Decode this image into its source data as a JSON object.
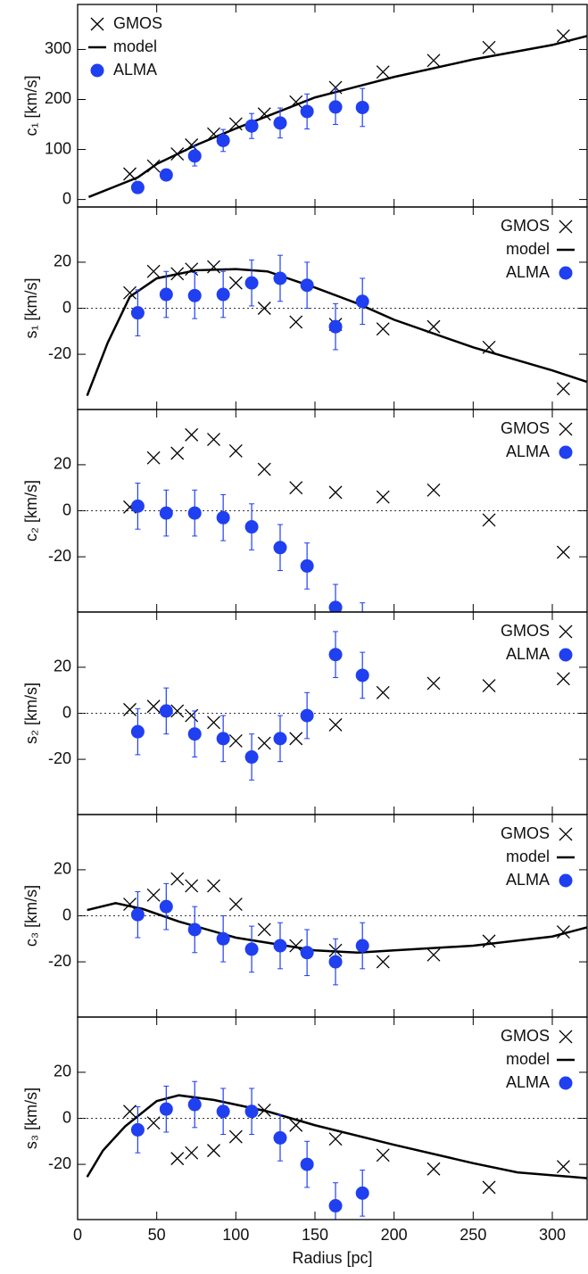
{
  "chart_data": [
    {
      "type": "line",
      "ylabel": "c₁ [km/s]",
      "xlim": [
        0,
        322
      ],
      "ylim": [
        -15,
        390
      ],
      "yticks": [
        0,
        100,
        200,
        300
      ],
      "legend": "upper left",
      "series": [
        {
          "name": "GMOS",
          "color": "#000000",
          "marker": "x",
          "x": [
            33,
            48,
            63,
            72,
            86,
            100,
            118,
            138,
            163,
            193,
            225,
            260,
            307
          ],
          "values": [
            51,
            67,
            91,
            109,
            131,
            151,
            171,
            195,
            224,
            255,
            278,
            304,
            327
          ]
        },
        {
          "name": "model",
          "color": "#000000",
          "marker": "line",
          "x": [
            7,
            38,
            50,
            75,
            100,
            150,
            200,
            250,
            300,
            322
          ],
          "values": [
            5,
            44,
            71,
            109,
            142,
            204,
            245,
            280,
            309,
            327
          ]
        },
        {
          "name": "ALMA",
          "color": "#1f3ff0",
          "marker": "o",
          "x": [
            38,
            56,
            74,
            92,
            110,
            128,
            145,
            163,
            180
          ],
          "values": [
            24,
            49,
            87,
            118,
            147,
            153,
            176,
            185,
            184
          ],
          "errors": [
            8,
            8,
            20,
            22,
            25,
            30,
            35,
            35,
            38
          ]
        }
      ]
    },
    {
      "type": "line",
      "ylabel": "s₁ [km/s]",
      "xlim": [
        0,
        322
      ],
      "ylim": [
        -44,
        44
      ],
      "yticks": [
        -20,
        0,
        20
      ],
      "reference_line": 0,
      "legend": "upper right",
      "series": [
        {
          "name": "GMOS",
          "color": "#000000",
          "marker": "x",
          "x": [
            33,
            48,
            63,
            72,
            86,
            100,
            118,
            138,
            163,
            193,
            225,
            260,
            307
          ],
          "values": [
            6.7,
            16,
            15,
            17,
            18,
            11,
            0,
            -6,
            -7,
            -9,
            -8,
            -17,
            -35
          ]
        },
        {
          "name": "model",
          "color": "#000000",
          "marker": "line",
          "x": [
            6,
            19,
            33,
            50,
            75,
            100,
            120,
            150,
            177,
            200,
            250,
            300,
            322
          ],
          "values": [
            -38,
            -15,
            5,
            13,
            16.5,
            17,
            16,
            9,
            2,
            -5,
            -17,
            -27,
            -32
          ]
        },
        {
          "name": "ALMA",
          "color": "#1f3ff0",
          "marker": "o",
          "x": [
            38,
            56,
            74,
            92,
            110,
            128,
            145,
            163,
            180
          ],
          "values": [
            -2,
            6,
            5.5,
            6,
            11,
            13,
            10,
            -8,
            3
          ],
          "errors": [
            10,
            10,
            10,
            10,
            10,
            10,
            10,
            10,
            10
          ]
        }
      ]
    },
    {
      "type": "line",
      "ylabel": "c₂ [km/s]",
      "xlim": [
        0,
        322
      ],
      "ylim": [
        -44,
        44
      ],
      "yticks": [
        -20,
        0,
        20
      ],
      "reference_line": 0,
      "legend": "upper right",
      "series": [
        {
          "name": "GMOS",
          "color": "#000000",
          "marker": "x",
          "x": [
            33,
            48,
            63,
            72,
            86,
            100,
            118,
            138,
            163,
            193,
            225,
            260,
            307
          ],
          "values": [
            1.6,
            23,
            25,
            33,
            31,
            26,
            18,
            10,
            8,
            6,
            9,
            -4,
            -18
          ]
        },
        {
          "name": "ALMA",
          "color": "#1f3ff0",
          "marker": "o",
          "x": [
            38,
            56,
            74,
            92,
            110,
            128,
            145,
            163,
            180
          ],
          "values": [
            2,
            -1,
            -1,
            -3,
            -7,
            -16,
            -24,
            -42,
            -50
          ],
          "errors": [
            10,
            10,
            10,
            10,
            10,
            10,
            10,
            10,
            10
          ]
        }
      ]
    },
    {
      "type": "line",
      "ylabel": "s₂ [km/s]",
      "xlim": [
        0,
        322
      ],
      "ylim": [
        -44,
        44
      ],
      "yticks": [
        -20,
        0,
        20
      ],
      "reference_line": 0,
      "legend": "upper right",
      "series": [
        {
          "name": "GMOS",
          "color": "#000000",
          "marker": "x",
          "x": [
            33,
            48,
            63,
            72,
            86,
            100,
            118,
            138,
            163,
            193,
            225,
            260,
            307
          ],
          "values": [
            1.6,
            3,
            1,
            -1,
            -4,
            -12,
            -13,
            -11,
            -5,
            9,
            13,
            12,
            15
          ]
        },
        {
          "name": "ALMA",
          "color": "#1f3ff0",
          "marker": "o",
          "x": [
            38,
            56,
            74,
            92,
            110,
            128,
            145,
            163,
            180
          ],
          "values": [
            -8,
            1,
            -9,
            -11,
            -19,
            -11,
            -1,
            25.5,
            16.5
          ],
          "errors": [
            10,
            10,
            10,
            10,
            10,
            10,
            10,
            10,
            10
          ]
        }
      ]
    },
    {
      "type": "line",
      "ylabel": "c₃ [km/s]",
      "xlim": [
        0,
        322
      ],
      "ylim": [
        -44,
        44
      ],
      "yticks": [
        -20,
        0,
        20
      ],
      "reference_line": 0,
      "legend": "upper right",
      "series": [
        {
          "name": "GMOS",
          "color": "#000000",
          "marker": "x",
          "x": [
            33,
            48,
            63,
            72,
            86,
            100,
            118,
            138,
            163,
            193,
            225,
            260,
            307
          ],
          "values": [
            5,
            9,
            16,
            13,
            13,
            5,
            -6,
            -13,
            -15,
            -20,
            -17,
            -11,
            -7
          ]
        },
        {
          "name": "model",
          "color": "#000000",
          "marker": "line",
          "x": [
            6,
            24,
            41,
            64,
            100,
            150,
            177,
            200,
            250,
            300,
            322
          ],
          "values": [
            2.5,
            5.5,
            3,
            -2.5,
            -9.5,
            -15,
            -16,
            -15,
            -13,
            -9,
            -5
          ]
        },
        {
          "name": "ALMA",
          "color": "#1f3ff0",
          "marker": "o",
          "x": [
            38,
            56,
            74,
            92,
            110,
            128,
            145,
            163,
            180
          ],
          "values": [
            0.5,
            4,
            -6,
            -10,
            -14.5,
            -13,
            -16,
            -20,
            -13
          ],
          "errors": [
            10,
            10,
            10,
            10,
            10,
            10,
            10,
            10,
            10
          ]
        }
      ]
    },
    {
      "type": "line",
      "ylabel": "s₃ [km/s]",
      "xlabel": "Radius [pc]",
      "xlim": [
        0,
        322
      ],
      "xticks": [
        0,
        50,
        100,
        150,
        200,
        250,
        300
      ],
      "ylim": [
        -44,
        44
      ],
      "yticks": [
        -20,
        0,
        20
      ],
      "reference_line": 0,
      "legend": "upper right",
      "series": [
        {
          "name": "GMOS",
          "color": "#000000",
          "marker": "x",
          "x": [
            33,
            48,
            63,
            72,
            86,
            100,
            118,
            138,
            163,
            193,
            225,
            260,
            307
          ],
          "values": [
            3,
            -2,
            -17.5,
            -15,
            -14,
            -8,
            3.5,
            -3,
            -9,
            -16,
            -22,
            -30,
            -21
          ]
        },
        {
          "name": "model",
          "color": "#000000",
          "marker": "line",
          "x": [
            6,
            16,
            30,
            50,
            64,
            86,
            120,
            150,
            200,
            250,
            278,
            322
          ],
          "values": [
            -25.5,
            -14,
            -3.5,
            7.5,
            10,
            8,
            3,
            -3,
            -11.5,
            -19.5,
            -23.5,
            -26
          ]
        },
        {
          "name": "ALMA",
          "color": "#1f3ff0",
          "marker": "o",
          "x": [
            38,
            56,
            74,
            92,
            110,
            128,
            145,
            163,
            180
          ],
          "values": [
            -5,
            4,
            6,
            3,
            3,
            -8.5,
            -20,
            -38,
            -32.5
          ],
          "errors": [
            10,
            10,
            10,
            10,
            10,
            10,
            10,
            10,
            10
          ]
        }
      ]
    }
  ]
}
